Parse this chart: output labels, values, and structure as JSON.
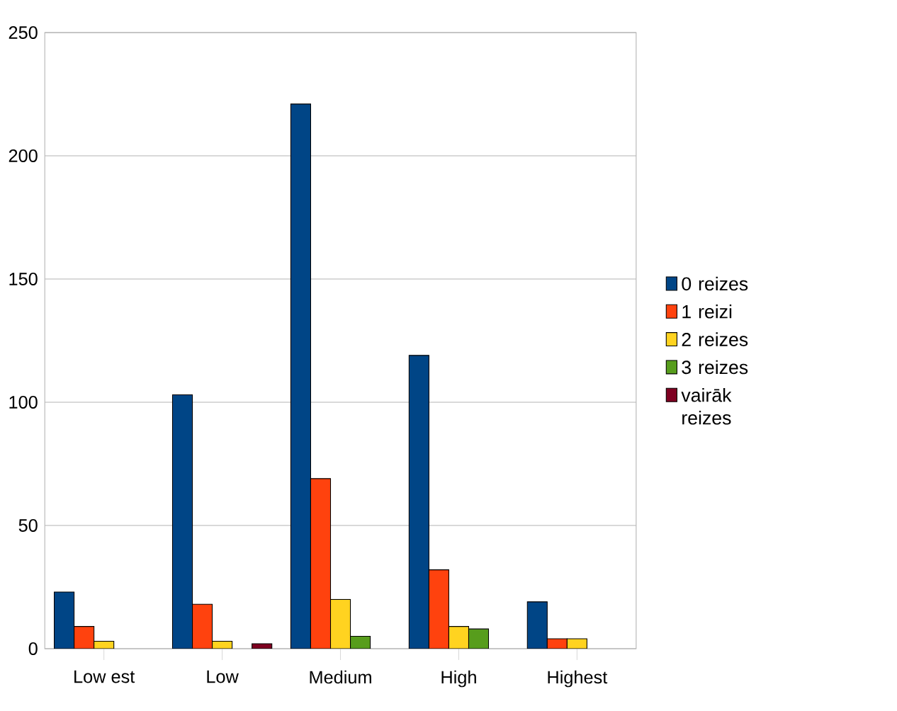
{
  "chart_data": {
    "type": "bar",
    "categories": [
      "Low est",
      "Low",
      "Medium",
      "High",
      "Highest"
    ],
    "series": [
      {
        "name": "0 reizes",
        "color": "#004586",
        "values": [
          23,
          103,
          221,
          119,
          19
        ]
      },
      {
        "name": "1 reizi",
        "color": "#ff420e",
        "values": [
          9,
          18,
          69,
          32,
          4
        ]
      },
      {
        "name": "2 reizes",
        "color": "#ffd320",
        "values": [
          3,
          3,
          20,
          9,
          4
        ]
      },
      {
        "name": "3 reizes",
        "color": "#579d1c",
        "values": [
          null,
          null,
          5,
          8,
          null
        ]
      },
      {
        "name": "vairāk reizes",
        "color": "#7e0021",
        "values": [
          null,
          2,
          null,
          null,
          null
        ]
      }
    ],
    "ylim": [
      0,
      250
    ],
    "yticks": [
      0,
      50,
      100,
      150,
      200,
      250
    ],
    "grid": "y",
    "legend": "right"
  }
}
